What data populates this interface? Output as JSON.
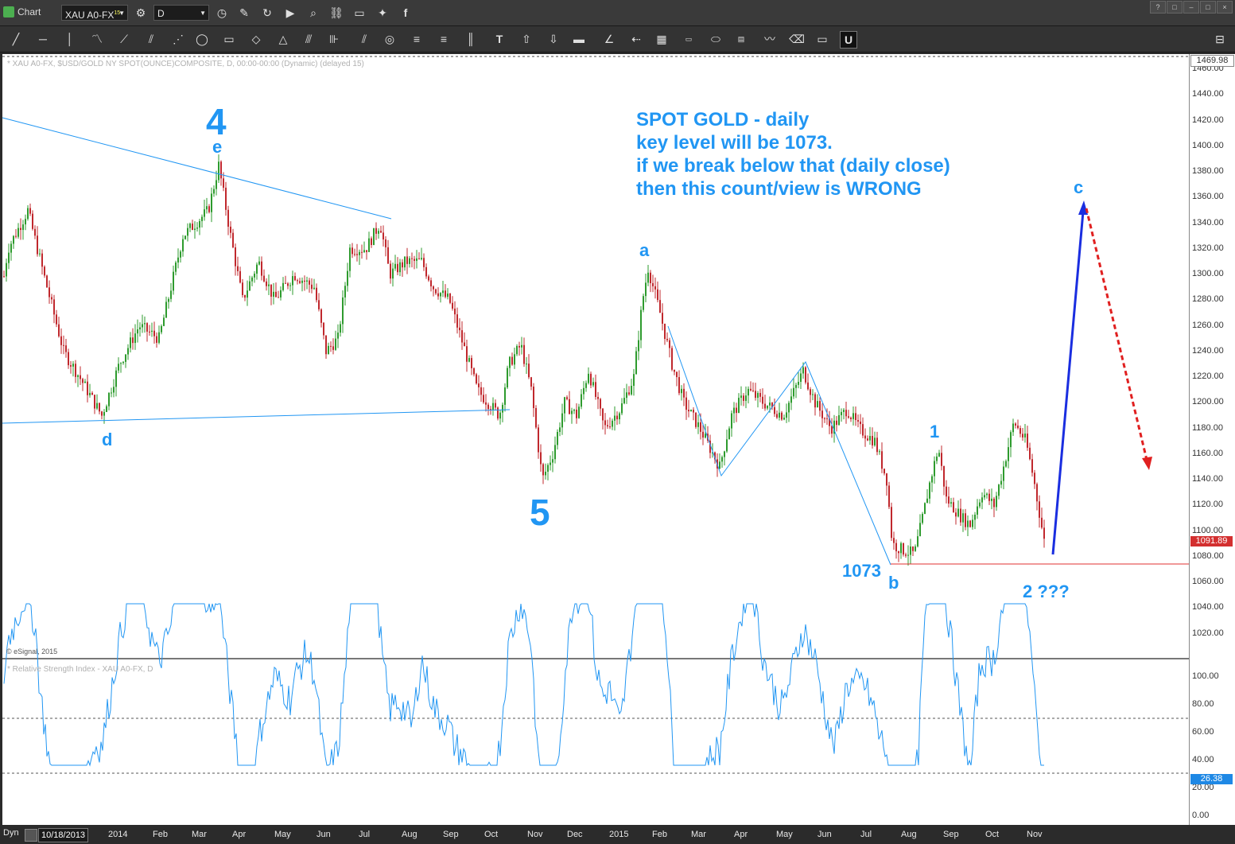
{
  "window": {
    "title": "Chart",
    "buttons": [
      "?",
      "□",
      "–",
      "□",
      "×"
    ]
  },
  "toolbar": {
    "symbol": "XAU A0-FX",
    "symbol_sup": "15",
    "interval": "D"
  },
  "chart": {
    "header": "* XAU A0-FX, $USD/GOLD NY SPOT(OUNCE)COMPOSITE, D, 00:00-00:00 (Dynamic) (delayed 15)",
    "copyright": "© eSignal, 2015",
    "current_price": "1091.89",
    "top_price": "1469.98",
    "y_ticks": [
      "1460.00",
      "1440.00",
      "1420.00",
      "1400.00",
      "1380.00",
      "1360.00",
      "1340.00",
      "1320.00",
      "1300.00",
      "1280.00",
      "1260.00",
      "1240.00",
      "1220.00",
      "1200.00",
      "1180.00",
      "1160.00",
      "1140.00",
      "1120.00",
      "1100.00",
      "1080.00",
      "1060.00",
      "1040.00",
      "1020.00"
    ],
    "annotation": {
      "line1": "SPOT GOLD - daily",
      "line2": "key level will be 1073.",
      "line3": "if we break below that (daily close)",
      "line4": "then this count/view is WRONG"
    },
    "wave_labels": {
      "w4": "4",
      "we": "e",
      "wd": "d",
      "w5": "5",
      "wa": "a",
      "wb": "b",
      "wc": "c",
      "w1": "1",
      "w2": "2 ???",
      "level": "1073"
    },
    "colors": {
      "wave": "#2196f3",
      "up_candle": "#2e9b2e",
      "down_candle": "#c0282d",
      "projection_up": "#1a2ee0",
      "projection_down": "#e02020",
      "key_level": "#e03030",
      "rsi": "#2196f3"
    }
  },
  "rsi": {
    "header": "* Relative Strength Index - XAU A0-FX, D",
    "current": "26.38",
    "y_ticks": [
      "100.00",
      "80.00",
      "60.00",
      "40.00",
      "20.00",
      "0.00"
    ]
  },
  "x_axis": {
    "left_label": "Dyn",
    "start_date": "10/18/2013",
    "months": [
      "2014",
      "Feb",
      "Mar",
      "Apr",
      "May",
      "Jun",
      "Jul",
      "Aug",
      "Sep",
      "Oct",
      "Nov",
      "Dec",
      "2015",
      "Feb",
      "Mar",
      "Apr",
      "May",
      "Jun",
      "Jul",
      "Aug",
      "Sep",
      "Oct",
      "Nov"
    ]
  }
}
